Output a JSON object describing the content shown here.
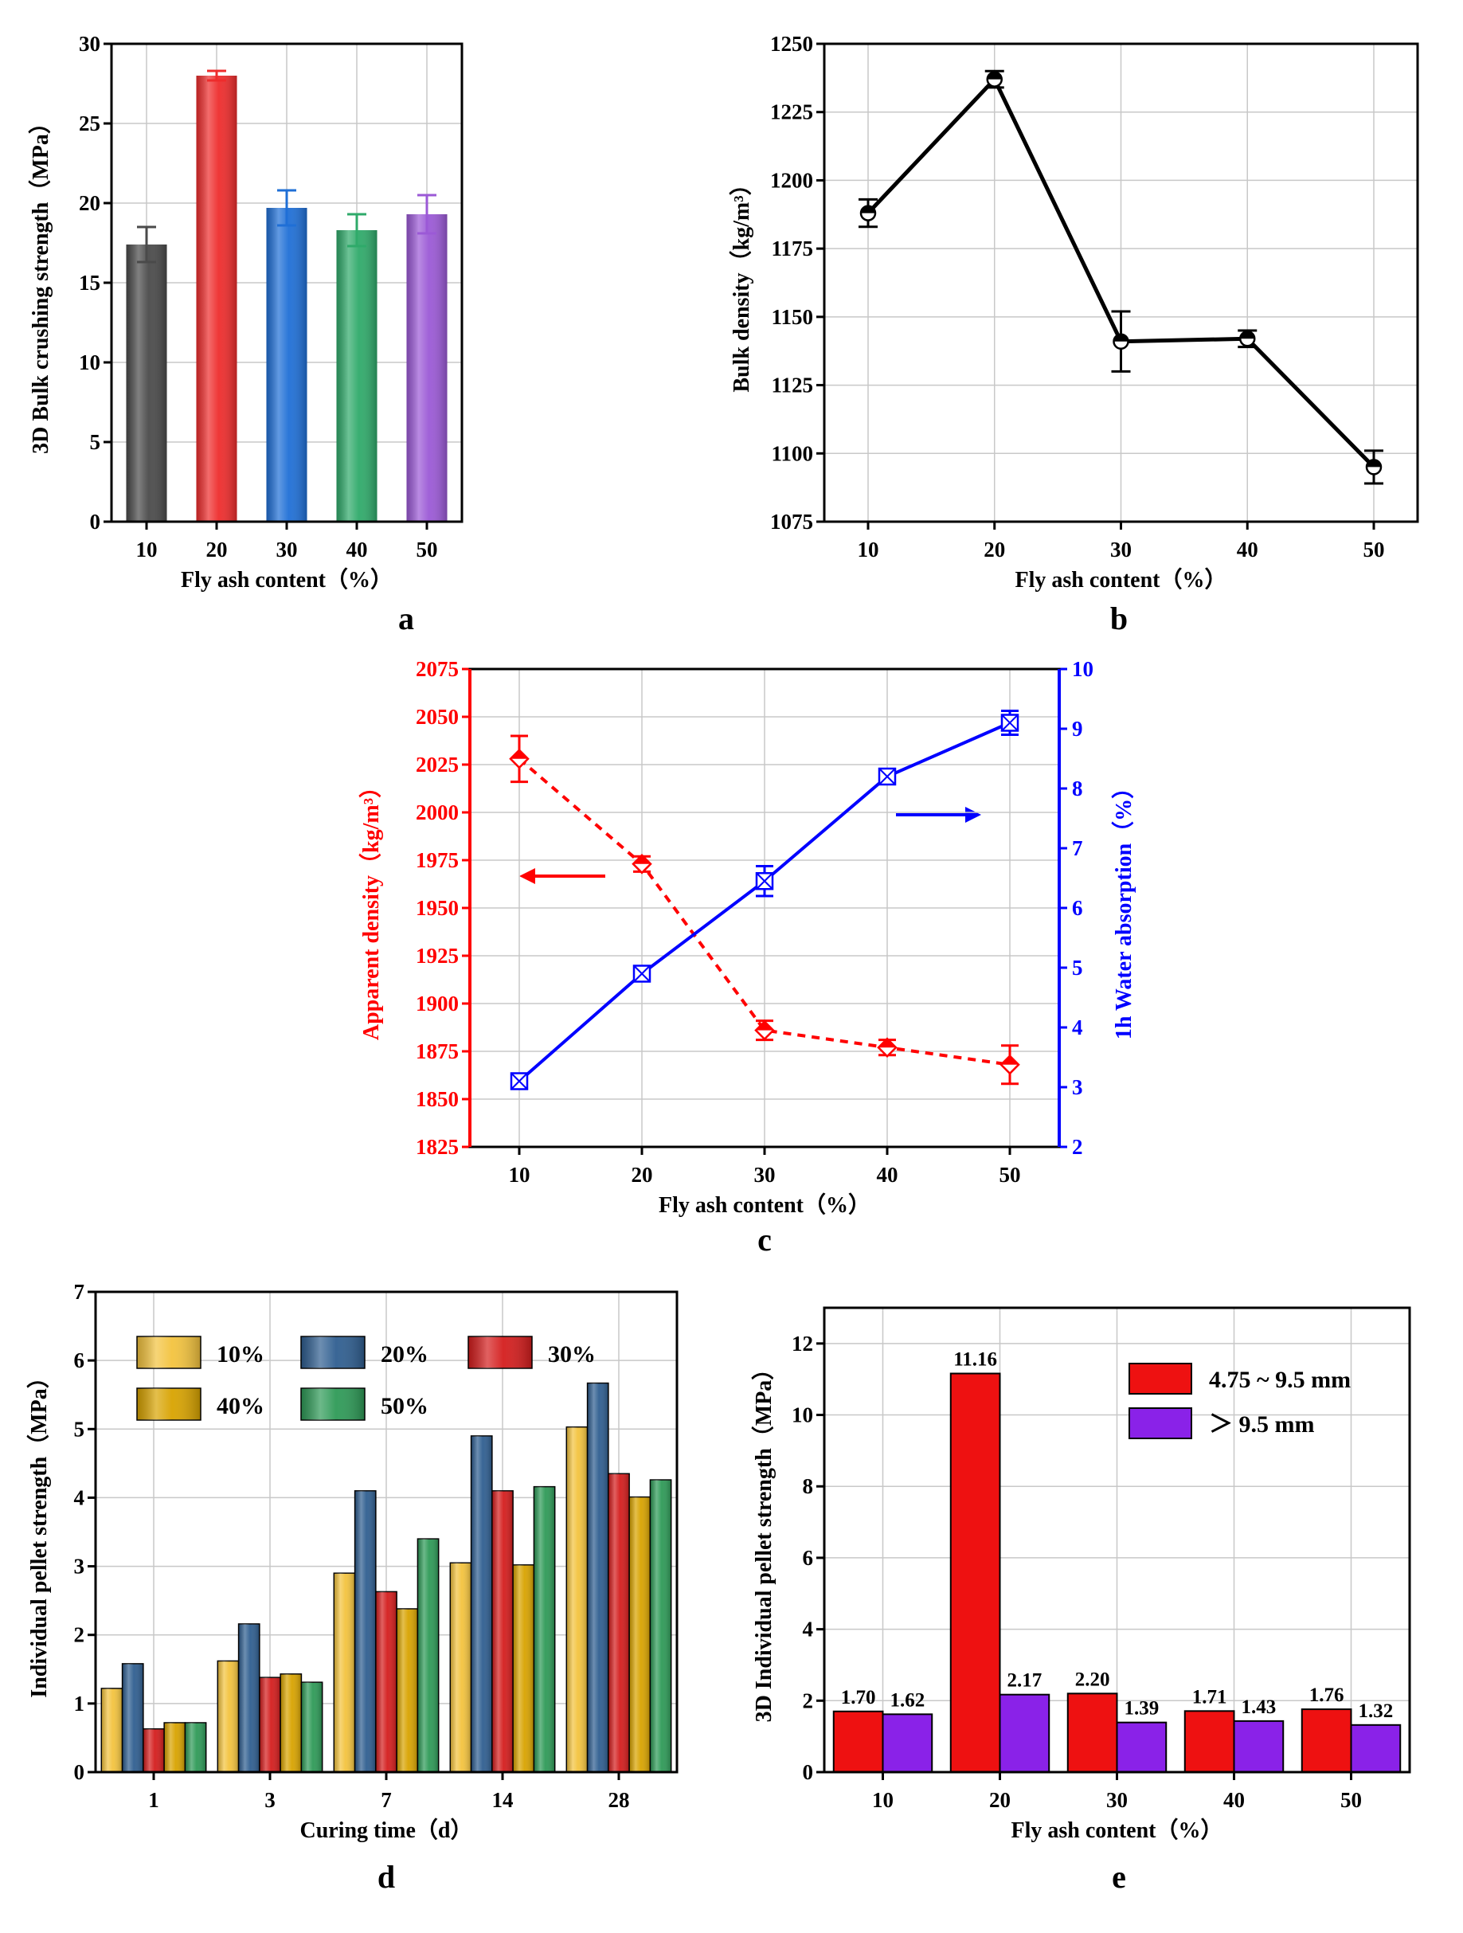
{
  "chart_data": [
    {
      "id": "a",
      "panel_label": "a",
      "type": "bar",
      "categories": [
        "10",
        "20",
        "30",
        "40",
        "50"
      ],
      "values": [
        17.4,
        28.0,
        19.7,
        18.3,
        19.3
      ],
      "errors": [
        1.1,
        0.3,
        1.1,
        1.0,
        1.2
      ],
      "colors": [
        "#4a4a4a",
        "#ee2c2c",
        "#1f6fd6",
        "#2faa6a",
        "#9b59d6"
      ],
      "xlabel": "Fly ash content（%）",
      "ylabel": "3D Bulk crushing strength（MPa）",
      "ylim": [
        0,
        30
      ],
      "yticks": [
        "0",
        "5",
        "10",
        "15",
        "20",
        "25",
        "30"
      ],
      "grid": true
    },
    {
      "id": "b",
      "panel_label": "b",
      "type": "line",
      "x": [
        "10",
        "20",
        "30",
        "40",
        "50"
      ],
      "values": [
        1188,
        1237,
        1141,
        1142,
        1095
      ],
      "errors": [
        5,
        3,
        11,
        3,
        6
      ],
      "color": "#000000",
      "xlabel": "Fly ash content（%）",
      "ylabel": "Bulk density（kg/m³）",
      "ylim": [
        1075,
        1250
      ],
      "yticks": [
        "1075",
        "1100",
        "1125",
        "1150",
        "1175",
        "1200",
        "1225",
        "1250"
      ],
      "grid": true
    },
    {
      "id": "c",
      "panel_label": "c",
      "type": "line",
      "x": [
        "10",
        "20",
        "30",
        "40",
        "50"
      ],
      "xlabel": "Fly ash content（%）",
      "ylabel_left": "Apparent density（kg/m³）",
      "ylabel_right": "1h Water absorption（%）",
      "ylim_left": [
        1825,
        2075
      ],
      "yticks_left": [
        "1825",
        "1850",
        "1875",
        "1900",
        "1925",
        "1950",
        "1975",
        "2000",
        "2025",
        "2050",
        "2075"
      ],
      "ylim_right": [
        2,
        10
      ],
      "yticks_right": [
        "2",
        "3",
        "4",
        "5",
        "6",
        "7",
        "8",
        "9",
        "10"
      ],
      "series": [
        {
          "name": "Apparent density",
          "axis": "left",
          "values": [
            2028,
            1973,
            1886,
            1877,
            1868
          ],
          "errors": [
            12,
            4,
            5,
            4,
            10
          ],
          "color": "#ff0000",
          "style": "dashed"
        },
        {
          "name": "1h Water absorption",
          "axis": "right",
          "values": [
            3.1,
            4.9,
            6.45,
            8.2,
            9.1
          ],
          "errors": [
            0.1,
            0.1,
            0.25,
            0.1,
            0.2
          ],
          "color": "#0000ff",
          "style": "solid"
        }
      ],
      "grid": true
    },
    {
      "id": "d",
      "panel_label": "d",
      "type": "bar",
      "categories": [
        "1",
        "3",
        "7",
        "14",
        "28"
      ],
      "xlabel": "Curing time（d）",
      "ylabel": "Individual pellet strength（MPa）",
      "ylim": [
        0,
        7
      ],
      "yticks": [
        "0",
        "1",
        "2",
        "3",
        "4",
        "5",
        "6",
        "7"
      ],
      "series": [
        {
          "name": "10%",
          "values": [
            1.22,
            1.62,
            2.9,
            3.05,
            5.03
          ],
          "color": "#f3c33e"
        },
        {
          "name": "20%",
          "values": [
            1.58,
            2.16,
            4.1,
            4.9,
            5.67
          ],
          "color": "#2f5e90"
        },
        {
          "name": "30%",
          "values": [
            0.63,
            1.38,
            2.63,
            4.1,
            4.35
          ],
          "color": "#d41d1d"
        },
        {
          "name": "40%",
          "values": [
            0.72,
            1.43,
            2.38,
            3.02,
            4.01
          ],
          "color": "#d8a300"
        },
        {
          "name": "50%",
          "values": [
            0.72,
            1.31,
            3.4,
            4.16,
            4.26
          ],
          "color": "#2e9a57"
        }
      ],
      "legend": "top-left",
      "grid": true
    },
    {
      "id": "e",
      "panel_label": "e",
      "type": "bar",
      "categories": [
        "10",
        "20",
        "30",
        "40",
        "50"
      ],
      "xlabel": "Fly ash content（%）",
      "ylabel": "3D Individual pellet strength（MPa）",
      "ylim": [
        0,
        13
      ],
      "yticks": [
        "0",
        "2",
        "4",
        "6",
        "8",
        "10",
        "12"
      ],
      "series": [
        {
          "name": "4.75 ~ 9.5 mm",
          "values": [
            1.7,
            11.16,
            2.2,
            1.71,
            1.76
          ],
          "labels": [
            "1.70",
            "11.16",
            "2.20",
            "1.71",
            "1.76"
          ],
          "color": "#ee1111"
        },
        {
          "name": "＞ 9.5 mm",
          "values": [
            1.62,
            2.17,
            1.39,
            1.43,
            1.32
          ],
          "labels": [
            "1.62",
            "2.17",
            "1.39",
            "1.43",
            "1.32"
          ],
          "color": "#8a22e8"
        }
      ],
      "legend": "top-right",
      "grid": true
    }
  ]
}
